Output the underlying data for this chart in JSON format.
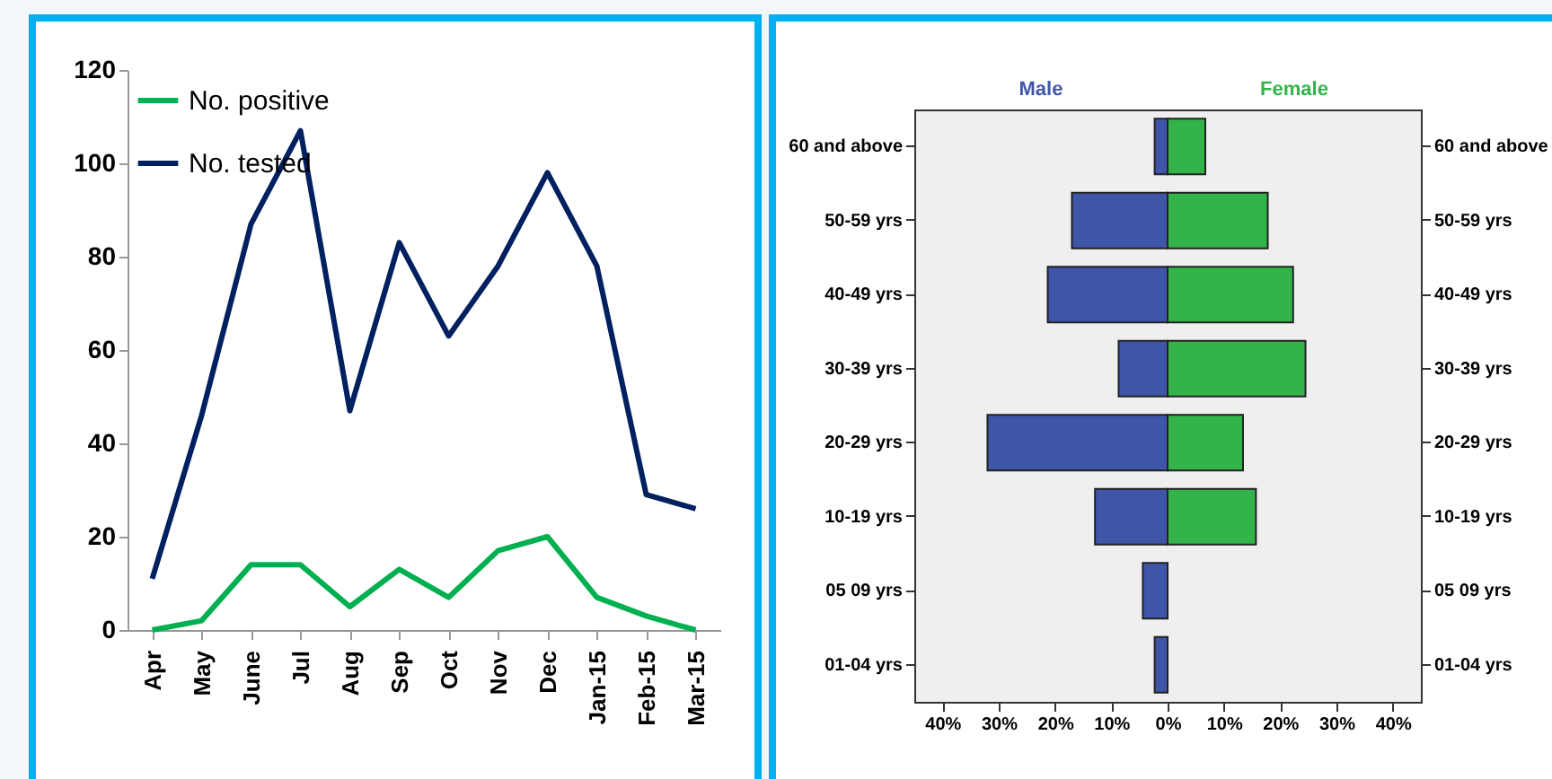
{
  "chart_data": [
    {
      "type": "line",
      "categories": [
        "Apr",
        "May",
        "June",
        "Jul",
        "Aug",
        "Sep",
        "Oct",
        "Nov",
        "Dec",
        "Jan-15",
        "Feb-15",
        "Mar-15"
      ],
      "series": [
        {
          "name": "No. positive",
          "color": "#00b050",
          "values": [
            0,
            2,
            14,
            14,
            5,
            13,
            7,
            17,
            20,
            7,
            3,
            0
          ]
        },
        {
          "name": "No. tested",
          "color": "#002060",
          "values": [
            11,
            46,
            87,
            107,
            47,
            83,
            63,
            78,
            98,
            78,
            29,
            26
          ]
        }
      ],
      "ylim": [
        0,
        120
      ],
      "yticks": [
        0,
        20,
        40,
        60,
        80,
        100,
        120
      ],
      "legend": "top left",
      "marker": "none",
      "line_style": "solid",
      "grid": false
    },
    {
      "type": "bar",
      "orientation": "horizontal",
      "categories": [
        "60 and above",
        "50-59 yrs",
        "40-49 yrs",
        "30-39 yrs",
        "20-29 yrs",
        "10-19 yrs",
        "05 09 yrs",
        "01-04 yrs"
      ],
      "series": [
        {
          "name": "Male",
          "color": "#3f56a8",
          "values": [
            -2.3,
            -17,
            -21.3,
            -8.7,
            -32,
            -12.9,
            -4.4,
            -2.3
          ]
        },
        {
          "name": "Female",
          "color": "#33b44a",
          "values": [
            6.7,
            17.8,
            22.3,
            24.5,
            13.4,
            15.7,
            null,
            null
          ]
        }
      ],
      "stacked": true,
      "xlim": [
        -45,
        45
      ],
      "xticks": [
        {
          "value": -40,
          "label": "40%"
        },
        {
          "value": -30,
          "label": "30%"
        },
        {
          "value": -20,
          "label": "20%"
        },
        {
          "value": -10,
          "label": "10%"
        },
        {
          "value": 0,
          "label": "0%"
        },
        {
          "value": 10,
          "label": "10%"
        },
        {
          "value": 20,
          "label": "20%"
        },
        {
          "value": 30,
          "label": "30%"
        },
        {
          "value": 40,
          "label": "40%"
        }
      ],
      "legend": false,
      "grid": false
    }
  ]
}
